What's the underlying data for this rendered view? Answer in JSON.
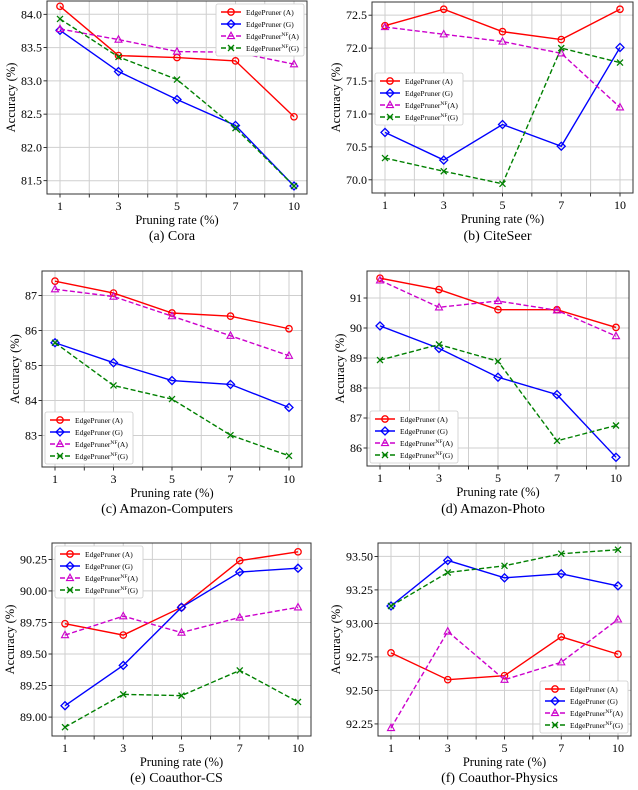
{
  "colors": {
    "A": "#ff0000",
    "G": "#0000ff",
    "NF_A": "#cc00cc",
    "NF_G": "#008000"
  },
  "chart_data": [
    {
      "type": "line",
      "caption": "(a)  Cora",
      "xlabel": "Pruning rate (%)",
      "ylabel": "Accuracy (%)",
      "categories": [
        "1",
        "3",
        "5",
        "7",
        "10"
      ],
      "ylim": [
        81.3,
        84.2
      ],
      "yticks": [
        "81.5",
        "82.0",
        "82.5",
        "83.0",
        "83.5",
        "84.0"
      ],
      "grid": true,
      "legend": "top-right",
      "series": [
        {
          "name": "EdgePruner (A)",
          "key": "A",
          "values": [
            84.12,
            83.38,
            83.35,
            83.3,
            82.46
          ]
        },
        {
          "name": "EdgePruner (G)",
          "key": "G",
          "values": [
            83.76,
            83.14,
            82.72,
            82.33,
            81.42
          ]
        },
        {
          "name": "EdgePruner^NF(A)",
          "key": "NF_A",
          "values": [
            83.78,
            83.62,
            83.44,
            83.43,
            83.25
          ]
        },
        {
          "name": "EdgePruner^NF(G)",
          "key": "NF_G",
          "values": [
            83.93,
            83.36,
            83.02,
            82.29,
            81.42
          ]
        }
      ]
    },
    {
      "type": "line",
      "caption": "(b)  CiteSeer",
      "xlabel": "Pruning rate (%)",
      "ylabel": "Accuracy (%)",
      "categories": [
        "1",
        "3",
        "5",
        "7",
        "10"
      ],
      "ylim": [
        69.8,
        72.7
      ],
      "yticks": [
        "70.0",
        "70.5",
        "71.0",
        "71.5",
        "72.0",
        "72.5"
      ],
      "grid": true,
      "legend": "center-left",
      "series": [
        {
          "name": "EdgePruner (A)",
          "key": "A",
          "values": [
            72.34,
            72.59,
            72.25,
            72.13,
            72.59
          ]
        },
        {
          "name": "EdgePruner (G)",
          "key": "G",
          "values": [
            70.72,
            70.3,
            70.84,
            70.51,
            72.01
          ]
        },
        {
          "name": "EdgePruner^NF(A)",
          "key": "NF_A",
          "values": [
            72.32,
            72.21,
            72.1,
            71.92,
            71.1
          ]
        },
        {
          "name": "EdgePruner^NF(G)",
          "key": "NF_G",
          "values": [
            70.33,
            70.13,
            69.94,
            72.0,
            71.78
          ]
        }
      ]
    },
    {
      "type": "line",
      "caption": "(c)  Amazon-Computers",
      "xlabel": "Pruning rate (%)",
      "ylabel": "Accuracy (%)",
      "categories": [
        "1",
        "3",
        "5",
        "7",
        "10"
      ],
      "ylim": [
        82.1,
        87.7
      ],
      "yticks": [
        "83",
        "84",
        "85",
        "86",
        "87"
      ],
      "grid": true,
      "legend": "lower-left",
      "series": [
        {
          "name": "EdgePruner (A)",
          "key": "A",
          "values": [
            87.41,
            87.07,
            86.5,
            86.41,
            86.05
          ]
        },
        {
          "name": "EdgePruner (G)",
          "key": "G",
          "values": [
            85.65,
            85.08,
            84.57,
            84.46,
            83.8
          ]
        },
        {
          "name": "EdgePruner^NF(A)",
          "key": "NF_A",
          "values": [
            87.18,
            86.97,
            86.41,
            85.85,
            85.28
          ]
        },
        {
          "name": "EdgePruner^NF(G)",
          "key": "NF_G",
          "values": [
            85.65,
            84.43,
            84.04,
            83.01,
            82.42
          ]
        }
      ]
    },
    {
      "type": "line",
      "caption": "(d)  Amazon-Photo",
      "xlabel": "Pruning rate (%)",
      "ylabel": "Accuracy (%)",
      "categories": [
        "1",
        "3",
        "5",
        "7",
        "10"
      ],
      "ylim": [
        85.4,
        91.9
      ],
      "yticks": [
        "86",
        "87",
        "88",
        "89",
        "90",
        "91"
      ],
      "grid": true,
      "legend": "lower-left",
      "series": [
        {
          "name": "EdgePruner (A)",
          "key": "A",
          "values": [
            91.66,
            91.28,
            90.61,
            90.61,
            90.02
          ]
        },
        {
          "name": "EdgePruner (G)",
          "key": "G",
          "values": [
            90.07,
            89.32,
            88.36,
            87.78,
            85.69
          ]
        },
        {
          "name": "EdgePruner^NF(A)",
          "key": "NF_A",
          "values": [
            91.59,
            90.69,
            90.9,
            90.59,
            89.73
          ]
        },
        {
          "name": "EdgePruner^NF(G)",
          "key": "NF_G",
          "values": [
            88.93,
            89.45,
            88.89,
            86.24,
            86.75
          ]
        }
      ]
    },
    {
      "type": "line",
      "caption": "(e)  Coauthor-CS",
      "xlabel": "Pruning rate (%)",
      "ylabel": "Accuracy (%)",
      "categories": [
        "1",
        "3",
        "5",
        "7",
        "10"
      ],
      "ylim": [
        88.85,
        90.38
      ],
      "yticks": [
        "89.00",
        "89.25",
        "89.50",
        "89.75",
        "90.00",
        "90.25"
      ],
      "grid": true,
      "legend": "top-left",
      "series": [
        {
          "name": "EdgePruner (A)",
          "key": "A",
          "values": [
            89.74,
            89.65,
            89.87,
            90.24,
            90.31
          ]
        },
        {
          "name": "EdgePruner (G)",
          "key": "G",
          "values": [
            89.09,
            89.41,
            89.87,
            90.15,
            90.18
          ]
        },
        {
          "name": "EdgePruner^NF(A)",
          "key": "NF_A",
          "values": [
            89.65,
            89.8,
            89.67,
            89.79,
            89.87
          ]
        },
        {
          "name": "EdgePruner^NF(G)",
          "key": "NF_G",
          "values": [
            88.92,
            89.18,
            89.17,
            89.37,
            89.12
          ]
        }
      ]
    },
    {
      "type": "line",
      "caption": "(f)  Coauthor-Physics",
      "xlabel": "Pruning rate (%)",
      "ylabel": "Accuracy (%)",
      "categories": [
        "1",
        "3",
        "5",
        "7",
        "10"
      ],
      "ylim": [
        92.16,
        93.6
      ],
      "yticks": [
        "92.25",
        "92.50",
        "92.75",
        "93.00",
        "93.25",
        "93.50"
      ],
      "grid": true,
      "legend": "lower-right",
      "series": [
        {
          "name": "EdgePruner (A)",
          "key": "A",
          "values": [
            92.78,
            92.58,
            92.61,
            92.9,
            92.77
          ]
        },
        {
          "name": "EdgePruner (G)",
          "key": "G",
          "values": [
            93.13,
            93.47,
            93.34,
            93.37,
            93.28
          ]
        },
        {
          "name": "EdgePruner^NF(A)",
          "key": "NF_A",
          "values": [
            92.22,
            92.94,
            92.58,
            92.71,
            93.03
          ]
        },
        {
          "name": "EdgePruner^NF(G)",
          "key": "NF_G",
          "values": [
            93.13,
            93.38,
            93.43,
            93.52,
            93.55
          ]
        }
      ]
    }
  ]
}
